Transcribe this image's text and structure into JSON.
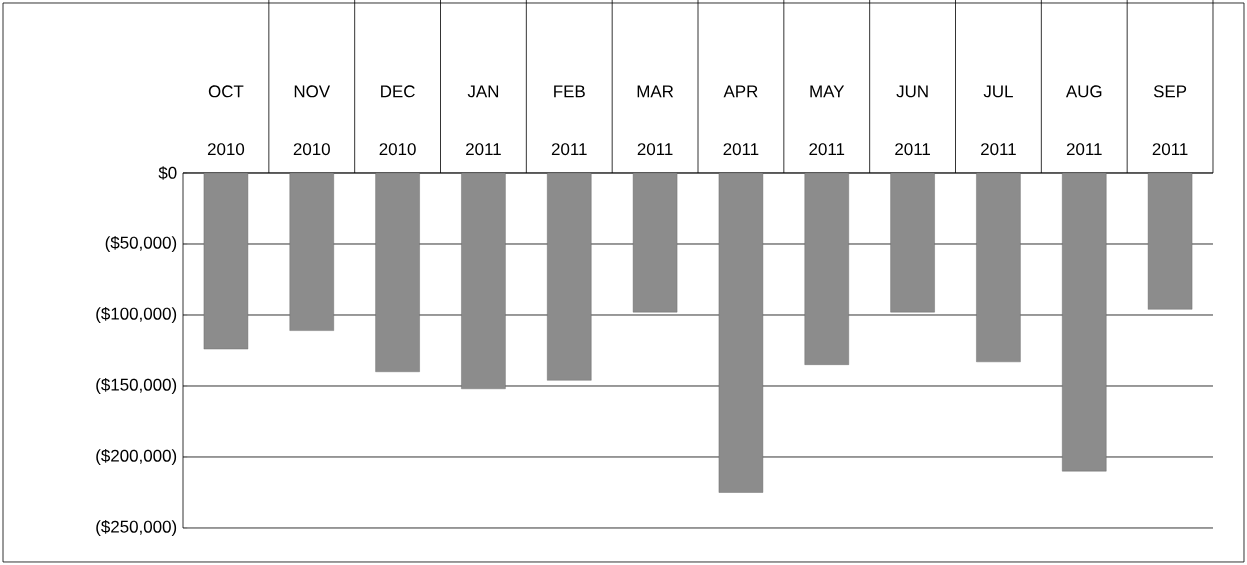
{
  "chart_data": {
    "type": "bar",
    "categories": [
      "OCT 2010",
      "NOV 2010",
      "DEC 2010",
      "JAN 2011",
      "FEB 2011",
      "MAR 2011",
      "APR 2011",
      "MAY 2011",
      "JUN 2011",
      "JUL 2011",
      "AUG 2011",
      "SEP 2011"
    ],
    "values": [
      -124000,
      -111000,
      -140000,
      -152000,
      -146000,
      -98000,
      -225000,
      -135000,
      -98000,
      -133000,
      -210000,
      -96000
    ],
    "color": "#8c8c8c",
    "ylim": [
      -250000,
      0
    ],
    "yticks": [
      {
        "value": 0,
        "label": "$0"
      },
      {
        "value": -50000,
        "label": "($50,000)"
      },
      {
        "value": -100000,
        "label": "($100,000)"
      },
      {
        "value": -150000,
        "label": "($150,000)"
      },
      {
        "value": -200000,
        "label": "($200,000)"
      },
      {
        "value": -250000,
        "label": "($250,000)"
      }
    ],
    "grid": "y"
  }
}
